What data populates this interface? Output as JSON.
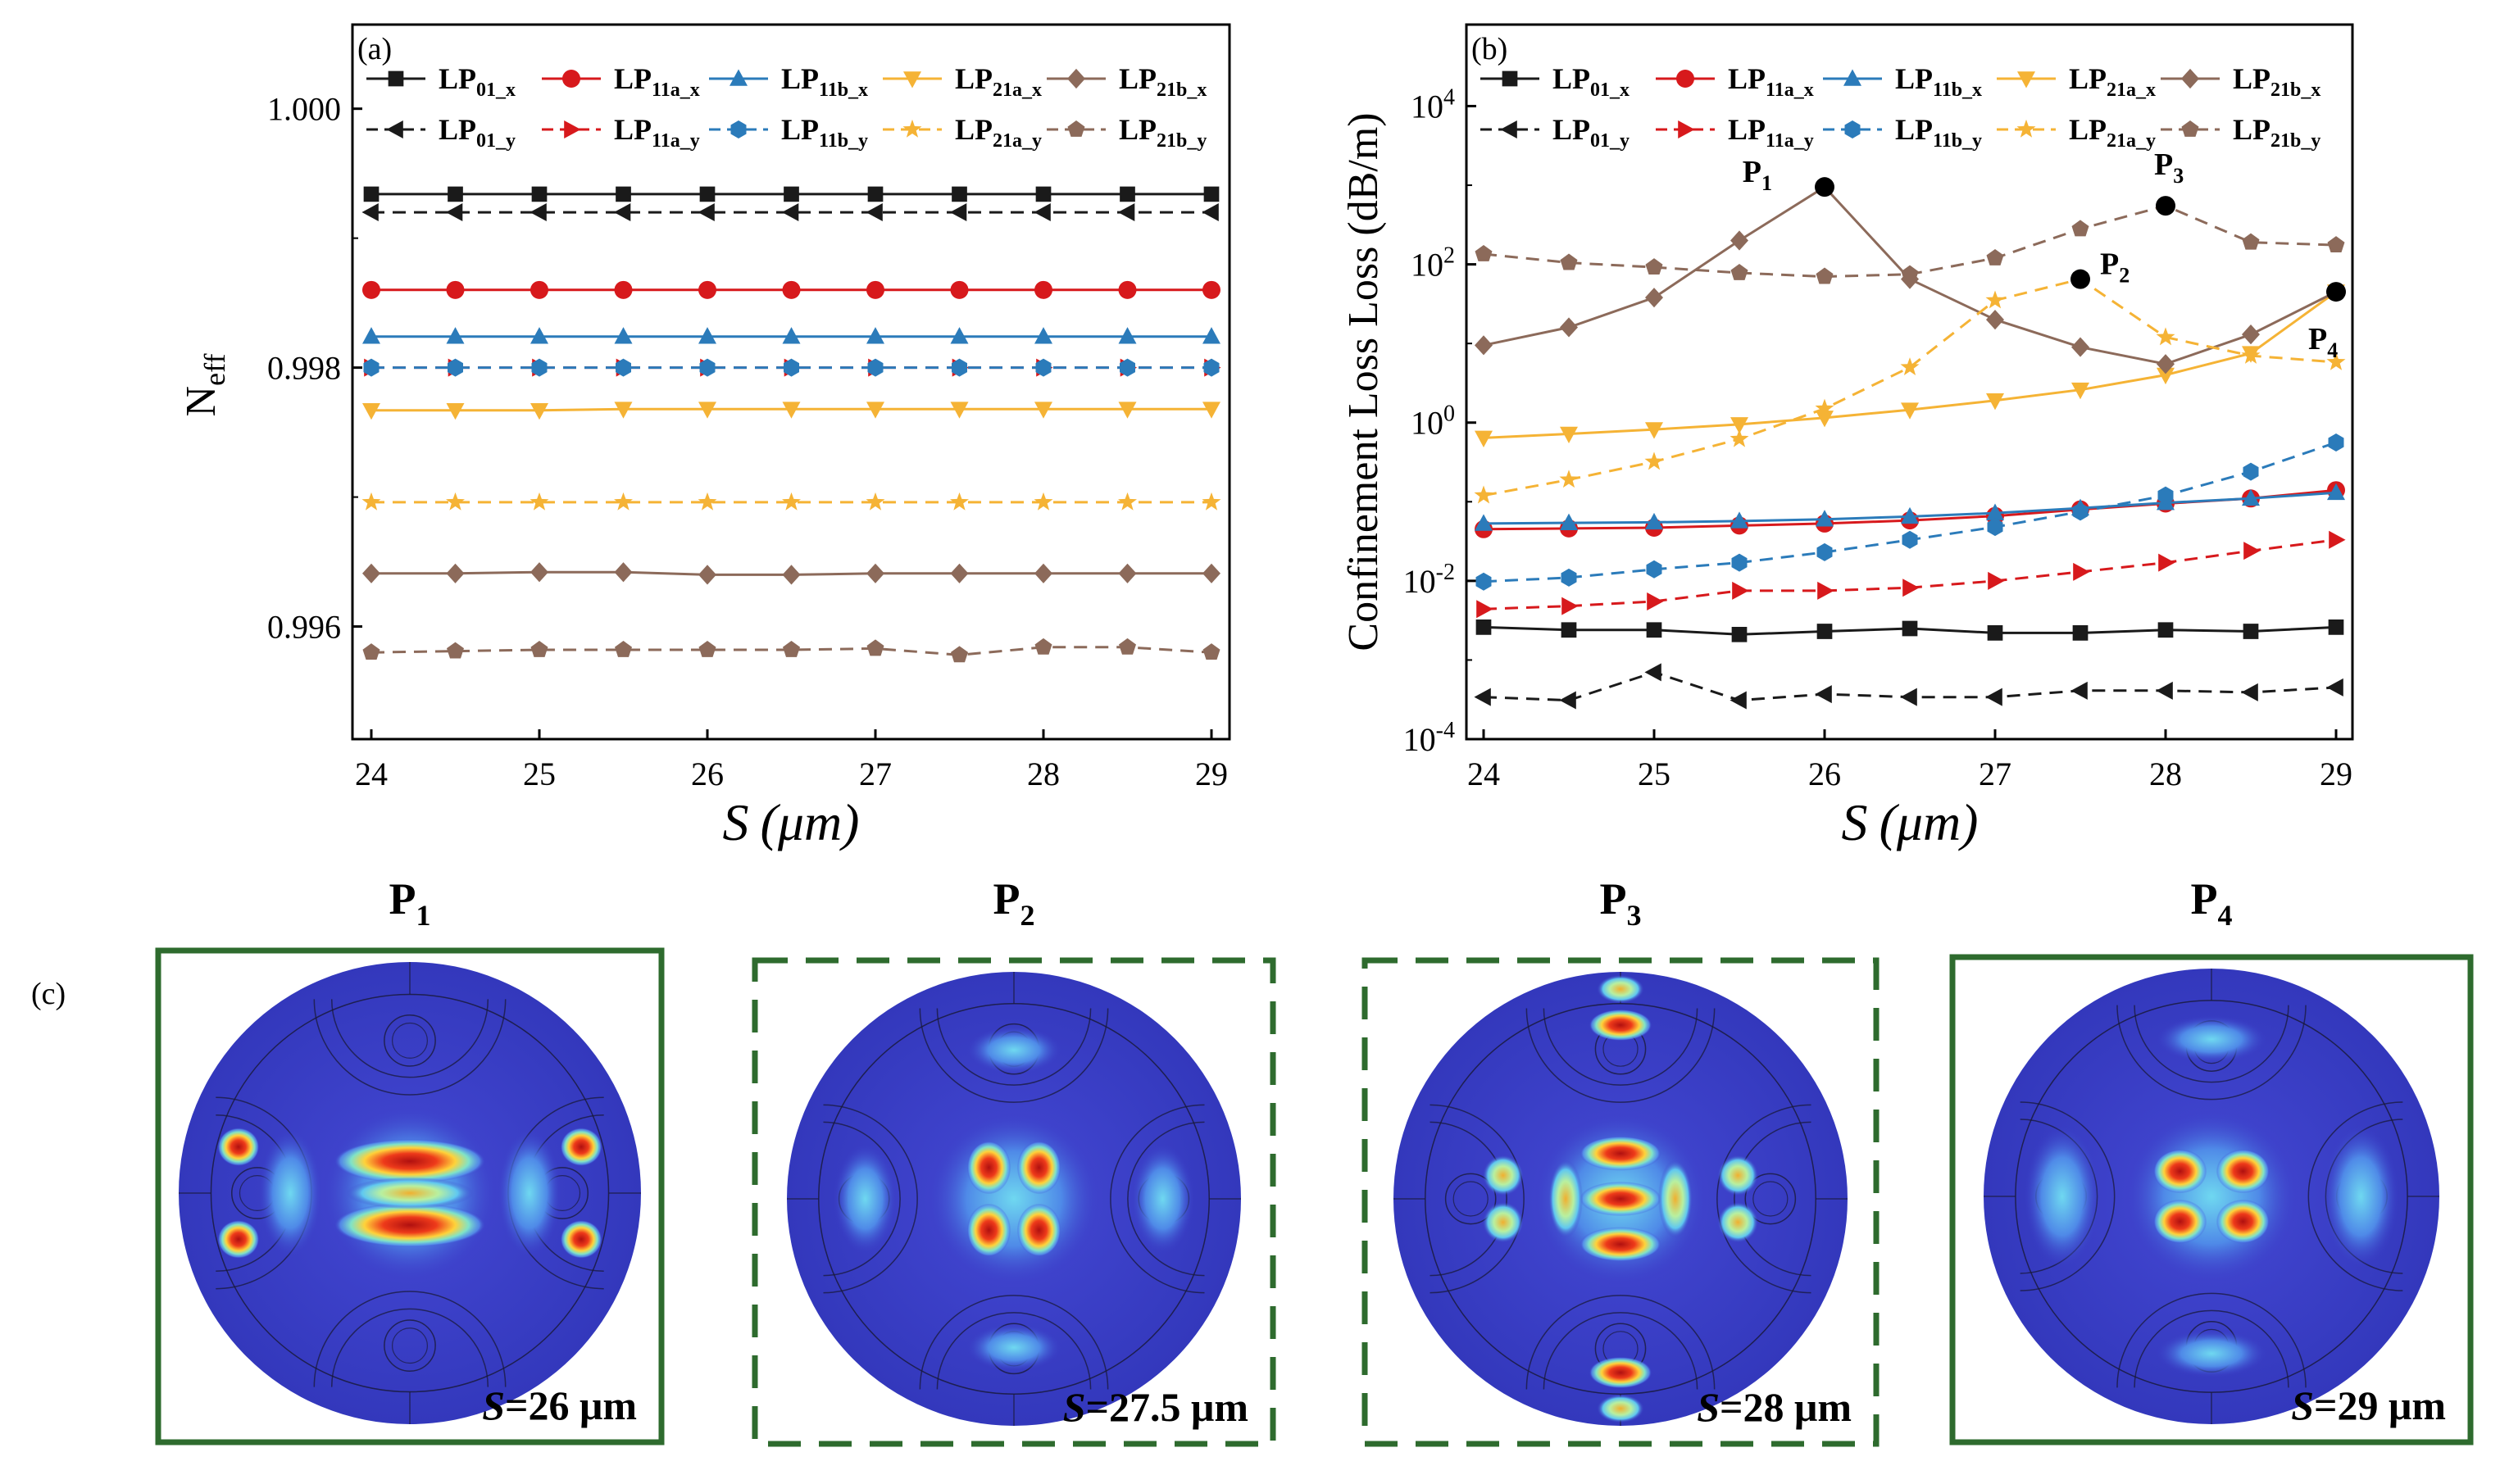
{
  "chart_data": [
    {
      "type": "line",
      "panel_label": "(a)",
      "xlabel": "S (μm)",
      "xlabel_var": "S",
      "xlabel_unit": "(μm)",
      "ylabel": "Neff",
      "ylabel_main": "N",
      "ylabel_sub": "eff",
      "xlim": [
        24,
        29
      ],
      "ylim": [
        0.99513,
        1.00065
      ],
      "xticks": [
        "24",
        "25",
        "26",
        "27",
        "28",
        "29"
      ],
      "yticks": [
        {
          "v": 1.0,
          "label": "1.000"
        },
        {
          "v": 0.998,
          "label": "0.998"
        },
        {
          "v": 0.996,
          "label": "0.996"
        }
      ],
      "x": [
        24,
        24.5,
        25,
        25.5,
        26,
        26.5,
        27,
        27.5,
        28,
        28.5,
        29
      ],
      "series": [
        {
          "name": "LP01_x",
          "main": "LP",
          "sub": "01_x",
          "color": "#1a1a1a",
          "dash": false,
          "marker": "square",
          "values": [
            0.99934,
            0.99934,
            0.99934,
            0.99934,
            0.99934,
            0.99934,
            0.99934,
            0.99934,
            0.99934,
            0.99934,
            0.99934
          ]
        },
        {
          "name": "LP11a_x",
          "main": "LP",
          "sub": "11a_x",
          "color": "#d7191c",
          "dash": false,
          "marker": "circle",
          "values": [
            0.9986,
            0.9986,
            0.9986,
            0.9986,
            0.9986,
            0.9986,
            0.9986,
            0.9986,
            0.9986,
            0.9986,
            0.9986
          ]
        },
        {
          "name": "LP11b_x",
          "main": "LP",
          "sub": "11b_x",
          "color": "#2b7bba",
          "dash": false,
          "marker": "triangle-up",
          "values": [
            0.99824,
            0.99824,
            0.99824,
            0.99824,
            0.99824,
            0.99824,
            0.99824,
            0.99824,
            0.99824,
            0.99824,
            0.99824
          ]
        },
        {
          "name": "LP21a_x",
          "main": "LP",
          "sub": "21a_x",
          "color": "#f5b335",
          "dash": false,
          "marker": "triangle-down",
          "values": [
            0.99767,
            0.99767,
            0.99767,
            0.99768,
            0.99768,
            0.99768,
            0.99768,
            0.99768,
            0.99768,
            0.99768,
            0.99768
          ]
        },
        {
          "name": "LP21b_x",
          "main": "LP",
          "sub": "21b_x",
          "color": "#8c6a5a",
          "dash": false,
          "marker": "diamond",
          "values": [
            0.99641,
            0.99641,
            0.99642,
            0.99642,
            0.9964,
            0.9964,
            0.99641,
            0.99641,
            0.99641,
            0.99641,
            0.99641
          ]
        },
        {
          "name": "LP01_y",
          "main": "LP",
          "sub": "01_y",
          "color": "#1a1a1a",
          "dash": true,
          "marker": "triangle-left",
          "values": [
            0.9992,
            0.9992,
            0.9992,
            0.9992,
            0.9992,
            0.9992,
            0.9992,
            0.9992,
            0.9992,
            0.9992,
            0.9992
          ]
        },
        {
          "name": "LP11a_y",
          "main": "LP",
          "sub": "11a_y",
          "color": "#d7191c",
          "dash": true,
          "marker": "triangle-right",
          "values": [
            0.998,
            0.998,
            0.998,
            0.998,
            0.998,
            0.998,
            0.998,
            0.998,
            0.998,
            0.998,
            0.998
          ]
        },
        {
          "name": "LP11b_y",
          "main": "LP",
          "sub": "11b_y",
          "color": "#2b7bba",
          "dash": true,
          "marker": "hexagon",
          "values": [
            0.998,
            0.998,
            0.998,
            0.998,
            0.998,
            0.998,
            0.998,
            0.998,
            0.998,
            0.998,
            0.998
          ]
        },
        {
          "name": "LP21a_y",
          "main": "LP",
          "sub": "21a_y",
          "color": "#f5b335",
          "dash": true,
          "marker": "star",
          "values": [
            0.99696,
            0.99696,
            0.99696,
            0.99696,
            0.99696,
            0.99696,
            0.99696,
            0.99696,
            0.99696,
            0.99696,
            0.99696
          ]
        },
        {
          "name": "LP21b_y",
          "main": "LP",
          "sub": "21b_y",
          "color": "#8c6a5a",
          "dash": true,
          "marker": "pentagon",
          "values": [
            0.9958,
            0.99581,
            0.99582,
            0.99582,
            0.99582,
            0.99582,
            0.99583,
            0.99578,
            0.99584,
            0.99584,
            0.9958
          ]
        }
      ]
    },
    {
      "type": "line",
      "panel_label": "(b)",
      "yscale": "log",
      "xlabel": "S (μm)",
      "xlabel_var": "S",
      "xlabel_unit": "(μm)",
      "ylabel": "Confinement Loss Loss (dB/m)",
      "xlim": [
        24,
        29
      ],
      "ylim_log10": [
        -4,
        5.03
      ],
      "xticks": [
        "24",
        "25",
        "26",
        "27",
        "28",
        "29"
      ],
      "yticks": [
        {
          "exp": -4,
          "base": "10",
          "sup": "-4"
        },
        {
          "exp": -2,
          "base": "10",
          "sup": "-2"
        },
        {
          "exp": 0,
          "base": "10",
          "sup": "0"
        },
        {
          "exp": 2,
          "base": "10",
          "sup": "2"
        },
        {
          "exp": 4,
          "base": "10",
          "sup": "4"
        }
      ],
      "x": [
        24,
        24.5,
        25,
        25.5,
        26,
        26.5,
        27,
        27.5,
        28,
        28.5,
        29
      ],
      "series": [
        {
          "name": "LP01_x",
          "main": "LP",
          "sub": "01_x",
          "color": "#1a1a1a",
          "dash": false,
          "marker": "square",
          "values": [
            0.0026,
            0.0024,
            0.0024,
            0.0021,
            0.0023,
            0.0025,
            0.0022,
            0.0022,
            0.0024,
            0.0023,
            0.0026
          ]
        },
        {
          "name": "LP11a_x",
          "main": "LP",
          "sub": "11a_x",
          "color": "#d7191c",
          "dash": false,
          "marker": "circle",
          "values": [
            0.045,
            0.046,
            0.047,
            0.05,
            0.053,
            0.058,
            0.066,
            0.08,
            0.095,
            0.11,
            0.14
          ]
        },
        {
          "name": "LP11b_x",
          "main": "LP",
          "sub": "11b_x",
          "color": "#2b7bba",
          "dash": false,
          "marker": "triangle-up",
          "values": [
            0.053,
            0.054,
            0.055,
            0.057,
            0.06,
            0.065,
            0.072,
            0.083,
            0.097,
            0.11,
            0.13
          ]
        },
        {
          "name": "LP21a_x",
          "main": "LP",
          "sub": "21a_x",
          "color": "#f5b335",
          "dash": false,
          "marker": "triangle-down",
          "values": [
            0.64,
            0.72,
            0.82,
            0.95,
            1.15,
            1.45,
            1.9,
            2.6,
            4.0,
            7.5,
            45
          ]
        },
        {
          "name": "LP21b_x",
          "main": "LP",
          "sub": "21b_x",
          "color": "#8c6a5a",
          "dash": false,
          "marker": "diamond",
          "values": [
            9.5,
            16,
            38,
            200,
            950,
            65,
            20,
            9.0,
            5.5,
            13,
            45
          ]
        },
        {
          "name": "LP01_y",
          "main": "LP",
          "sub": "01_y",
          "color": "#1a1a1a",
          "dash": true,
          "marker": "triangle-left",
          "values": [
            0.00034,
            0.00031,
            0.0007,
            0.00031,
            0.00037,
            0.00034,
            0.00034,
            0.00041,
            0.00041,
            0.00039,
            0.00045
          ]
        },
        {
          "name": "LP11a_y",
          "main": "LP",
          "sub": "11a_y",
          "color": "#d7191c",
          "dash": true,
          "marker": "triangle-right",
          "values": [
            0.0044,
            0.0048,
            0.0055,
            0.0075,
            0.0075,
            0.0082,
            0.01,
            0.013,
            0.017,
            0.024,
            0.033
          ]
        },
        {
          "name": "LP11b_y",
          "main": "LP",
          "sub": "11b_y",
          "color": "#2b7bba",
          "dash": true,
          "marker": "hexagon",
          "values": [
            0.0098,
            0.011,
            0.014,
            0.017,
            0.023,
            0.033,
            0.048,
            0.075,
            0.12,
            0.24,
            0.56
          ]
        },
        {
          "name": "LP21a_y",
          "main": "LP",
          "sub": "21a_y",
          "color": "#f5b335",
          "dash": true,
          "marker": "star",
          "values": [
            0.12,
            0.19,
            0.32,
            0.62,
            1.5,
            5.0,
            35,
            65,
            12,
            7.0,
            5.8
          ]
        },
        {
          "name": "LP21b_y",
          "main": "LP",
          "sub": "21b_y",
          "color": "#8c6a5a",
          "dash": true,
          "marker": "pentagon",
          "values": [
            135,
            105,
            92,
            78,
            70,
            75,
            120,
            280,
            550,
            190,
            175
          ]
        }
      ],
      "annotations": [
        {
          "label": "P",
          "sub": "1",
          "x": 26,
          "value": 950
        },
        {
          "label": "P",
          "sub": "2",
          "x": 27.5,
          "value": 65
        },
        {
          "label": "P",
          "sub": "3",
          "x": 28,
          "value": 550
        },
        {
          "label": "P",
          "sub": "4",
          "x": 29,
          "value": 45
        }
      ]
    }
  ],
  "panel_c": {
    "label": "(c)",
    "items": [
      {
        "title": "P",
        "sub": "1",
        "caption_var": "S",
        "caption_rest": "=26 μm",
        "frame": "solid",
        "pattern": "lp21b_side"
      },
      {
        "title": "P",
        "sub": "2",
        "caption_var": "S",
        "caption_rest": "=27.5 μm",
        "frame": "dashed",
        "pattern": "lp21a_center"
      },
      {
        "title": "P",
        "sub": "3",
        "caption_var": "S",
        "caption_rest": "=28 μm",
        "frame": "dashed",
        "pattern": "lp21b_vertical"
      },
      {
        "title": "P",
        "sub": "4",
        "caption_var": "S",
        "caption_rest": "=29 μm",
        "frame": "solid",
        "pattern": "lp21a_center_side"
      }
    ],
    "colors": {
      "frame": "#2e6b2e",
      "background": "#3b3fc8",
      "outer_ring": "#3a3ec2"
    }
  }
}
